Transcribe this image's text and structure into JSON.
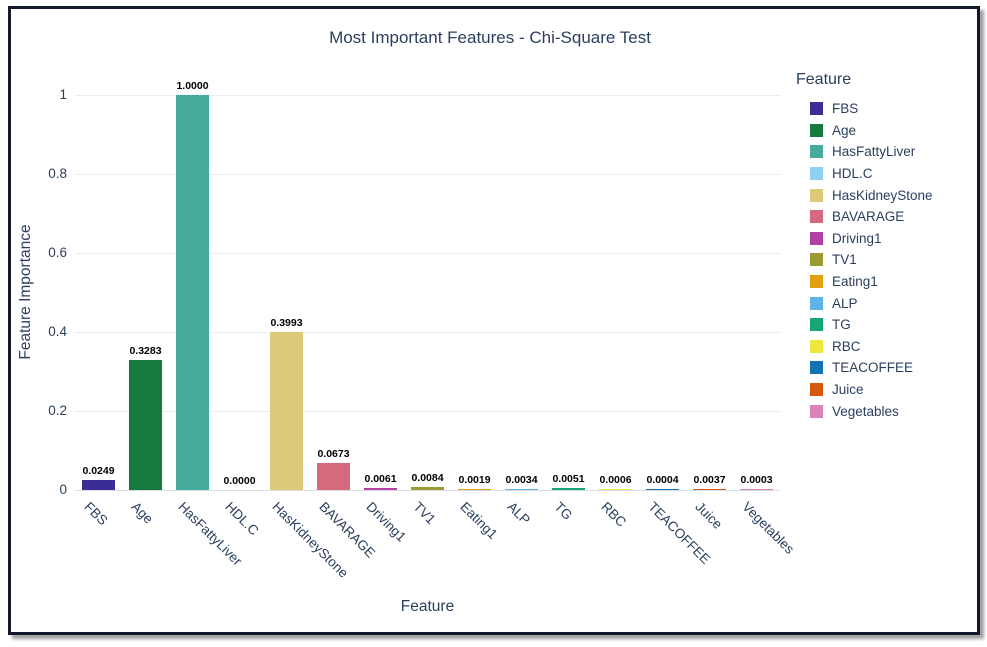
{
  "chart_data": {
    "type": "bar",
    "title": "Most Important Features - Chi-Square Test",
    "xlabel": "Feature",
    "ylabel": "Feature Importance",
    "ylim": [
      0,
      1
    ],
    "ytick_values": [
      0,
      0.2,
      0.4,
      0.6,
      0.8,
      1
    ],
    "yticks": [
      "0",
      "0.2",
      "0.4",
      "0.6",
      "0.8",
      "1"
    ],
    "grid": true,
    "legend": {
      "title": "Feature",
      "position": "right"
    },
    "categories": [
      "FBS",
      "Age",
      "HasFattyLiver",
      "HDL.C",
      "HasKidneyStone",
      "BAVARAGE",
      "Driving1",
      "TV1",
      "Eating1",
      "ALP",
      "TG",
      "RBC",
      "TEACOFFEE",
      "Juice",
      "Vegetables"
    ],
    "values": [
      0.0249,
      0.3283,
      1.0,
      0.0,
      0.3993,
      0.0673,
      0.0061,
      0.0084,
      0.0019,
      0.0034,
      0.0051,
      0.0006,
      0.0004,
      0.0037,
      0.0003
    ],
    "value_labels": [
      "0.0249",
      "0.3283",
      "1.0000",
      "0.0000",
      "0.3993",
      "0.0673",
      "0.0061",
      "0.0084",
      "0.0019",
      "0.0034",
      "0.0051",
      "0.0006",
      "0.0004",
      "0.0037",
      "0.0003"
    ],
    "colors": [
      "#3b2d96",
      "#157a3c",
      "#45ab9d",
      "#8fd0f2",
      "#dcc979",
      "#d5697e",
      "#b23fa3",
      "#9a9b32",
      "#e0a010",
      "#5fb4e6",
      "#16a578",
      "#ece83c",
      "#1272b3",
      "#d4590f",
      "#d983b8"
    ],
    "text_color": "#2a3f5f",
    "label_color": "#000000",
    "grid_color": "#e9edf2",
    "zero_line_color": "#d8dde6",
    "frame_border_color": "#11182b",
    "background": "#ffffff"
  }
}
